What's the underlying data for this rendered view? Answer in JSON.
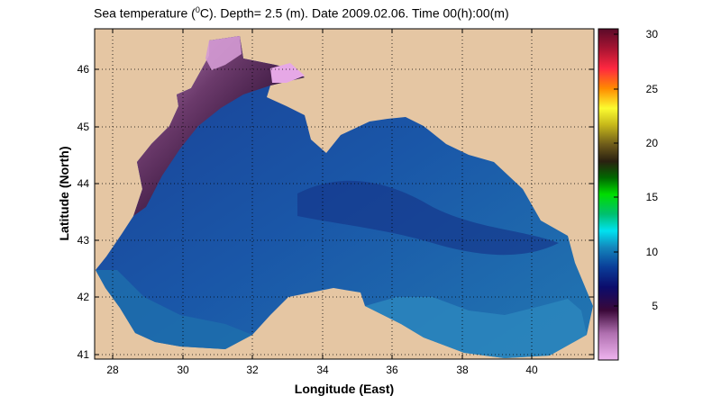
{
  "title": {
    "prefix": "Sea temperature (",
    "sup": "0",
    "suffix": "C). Depth=  2.5 (m). Date 2009.02.06. Time 00(h):00(m)"
  },
  "map": {
    "region": "Black Sea",
    "land_color": "#E5C6A3",
    "grid": true,
    "x_ticks": [
      "28",
      "30",
      "32",
      "34",
      "36",
      "38",
      "40"
    ],
    "y_ticks": [
      "41",
      "42",
      "43",
      "44",
      "45",
      "46"
    ],
    "xlabel": "Longitude (East)",
    "ylabel": "Latitude (North)"
  },
  "colorbar": {
    "ticks": [
      "30",
      "25",
      "20",
      "15",
      "10",
      "5"
    ]
  },
  "chart_data": {
    "type": "heatmap",
    "title": "Sea temperature (0C). Depth=  2.5 (m). Date 2009.02.06. Time 00(h):00(m)",
    "xlabel": "Longitude (East)",
    "ylabel": "Latitude (North)",
    "xlim": [
      27.5,
      41.8
    ],
    "ylim": [
      40.9,
      46.6
    ],
    "clim": [
      0,
      30
    ],
    "colorbar_ticks": [
      5,
      10,
      15,
      20,
      25,
      30
    ]
  }
}
